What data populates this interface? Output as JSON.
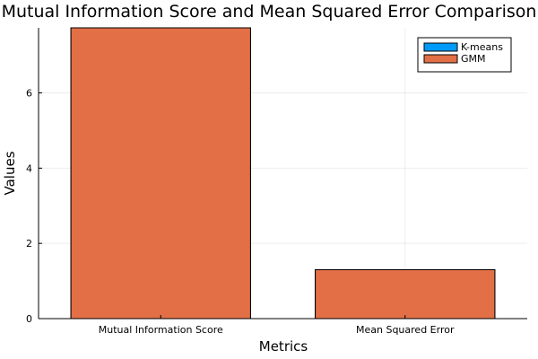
{
  "chart_data": {
    "type": "bar",
    "title": "Mutual Information Score and Mean Squared Error Comparison",
    "xlabel": "Metrics",
    "ylabel": "Values",
    "categories": [
      "Mutual Information Score",
      "Mean Squared Error"
    ],
    "series": [
      {
        "name": "K-means",
        "color": "#009af9",
        "values": [
          7.73,
          1.3
        ]
      },
      {
        "name": "GMM",
        "color": "#e26f46",
        "values": [
          7.73,
          1.3
        ]
      }
    ],
    "ylim": [
      0,
      7.73
    ],
    "yticks": [
      0,
      2,
      4,
      6
    ],
    "grid": true,
    "legend_position": "top-right"
  }
}
